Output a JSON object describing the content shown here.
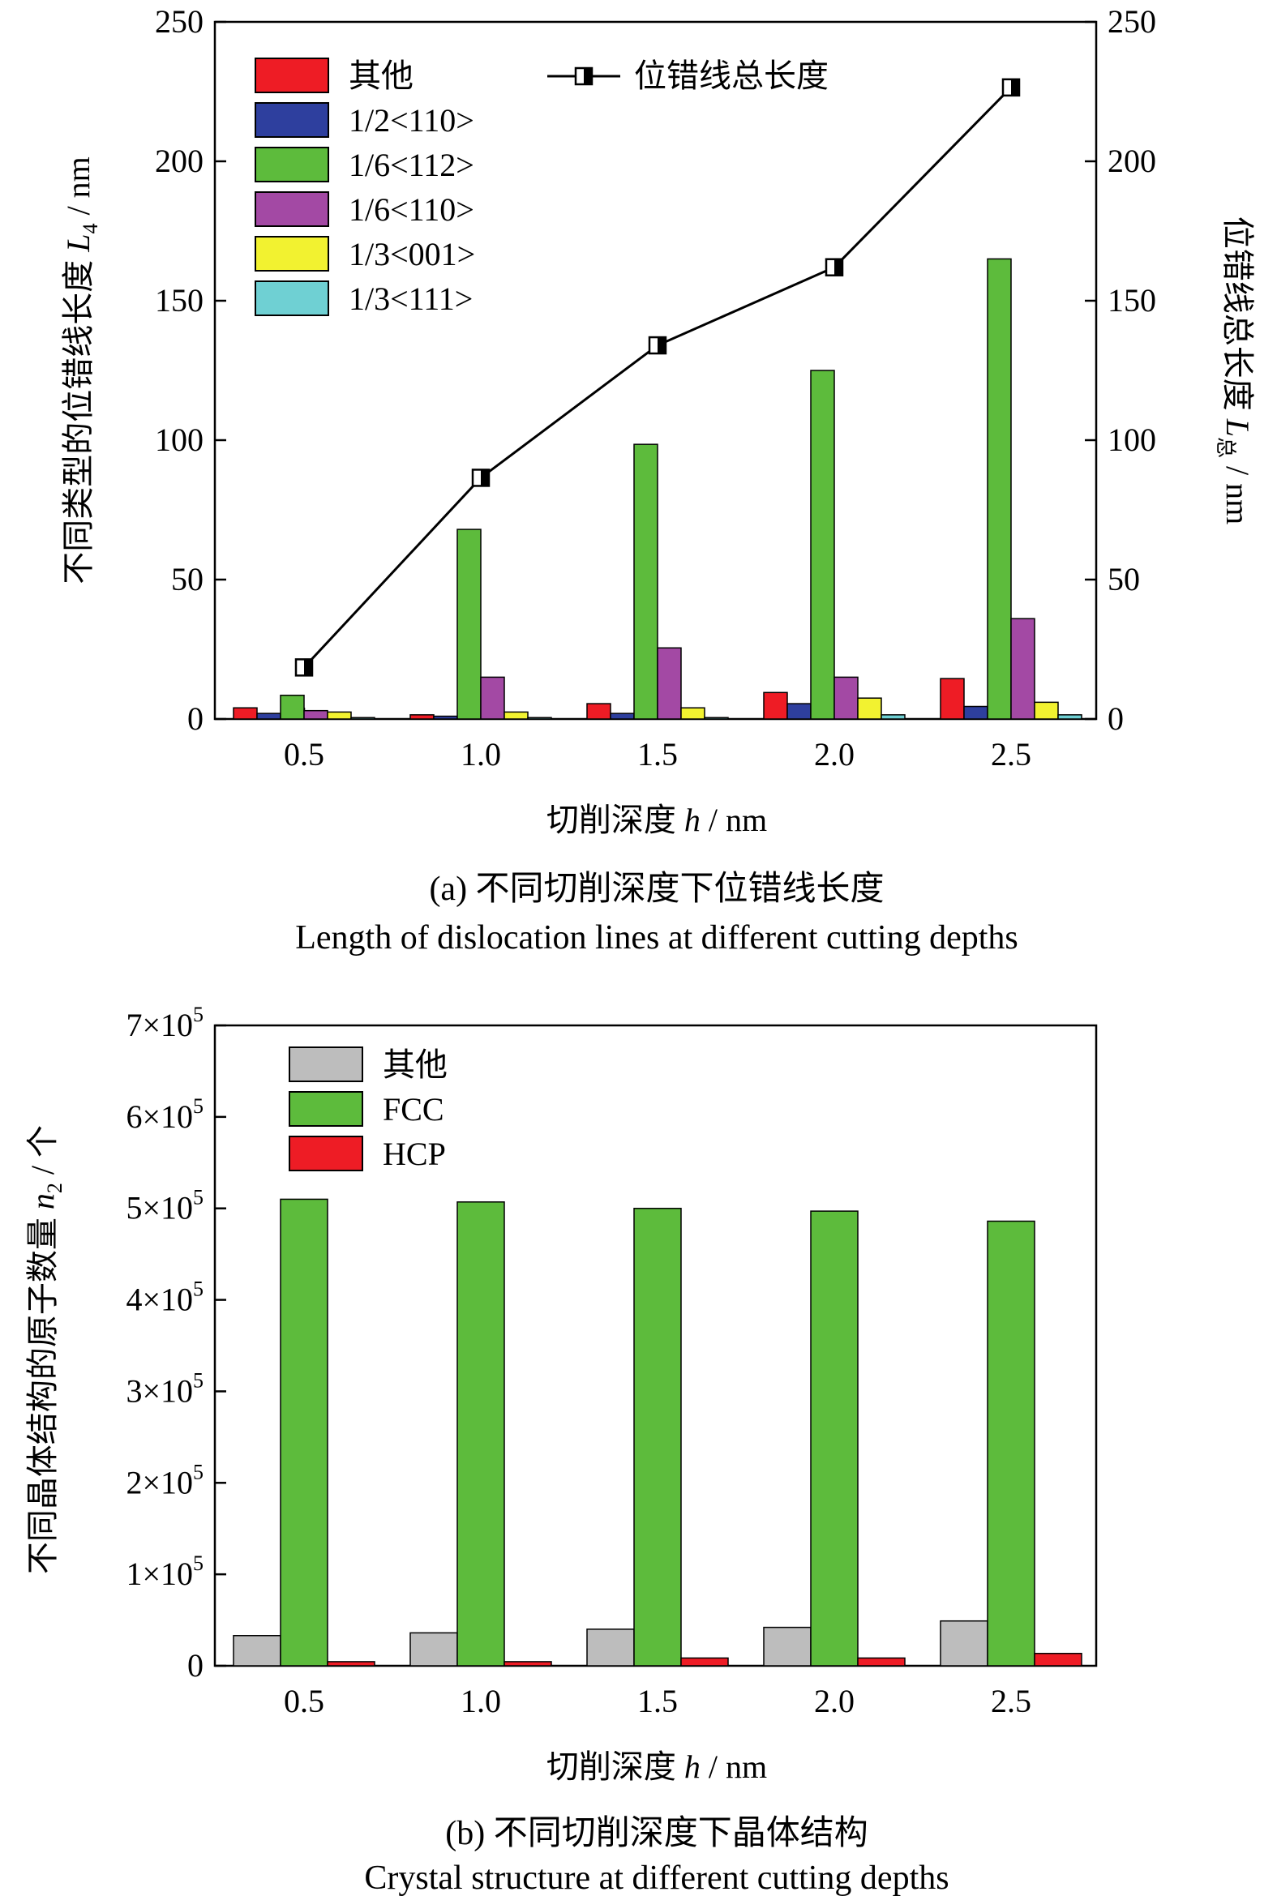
{
  "chart_data": [
    {
      "type": "bar",
      "caption_cn": "(a) 不同切削深度下位错线长度",
      "caption_en": "Length of dislocation lines at different cutting depths",
      "xlabel_pre": "切削深度 ",
      "xlabel_var": "h",
      "xlabel_post": " / nm",
      "ylabel_pre": "不同类型的位错线长度 ",
      "ylabel_var": "L",
      "ylabel_sub": "4",
      "ylabel_post": " / nm",
      "y2label_pre": "位错线总长度 ",
      "y2label_var": "L",
      "y2label_sub": "总",
      "y2label_post": " / nm",
      "categories": [
        "0.5",
        "1.0",
        "1.5",
        "2.0",
        "2.5"
      ],
      "ylim": [
        0,
        250
      ],
      "yticks": [
        "0",
        "50",
        "100",
        "150",
        "200",
        "250"
      ],
      "y2lim": [
        0,
        250
      ],
      "series": [
        {
          "name": "其他",
          "color": "#ee1c25",
          "values": [
            4,
            1.5,
            5.5,
            9.5,
            14.5
          ]
        },
        {
          "name": "1/2<110>",
          "color": "#2e3f9e",
          "values": [
            2,
            1,
            2,
            5.5,
            4.5
          ]
        },
        {
          "name": "1/6<112>",
          "color": "#5dbb3c",
          "values": [
            8.5,
            68,
            98.5,
            125,
            165
          ]
        },
        {
          "name": "1/6<110>",
          "color": "#a349a4",
          "values": [
            3,
            15,
            25.5,
            15,
            36
          ]
        },
        {
          "name": "1/3<001>",
          "color": "#f2f230",
          "values": [
            2.5,
            2.5,
            4,
            7.5,
            6
          ]
        },
        {
          "name": "1/3<111>",
          "color": "#6fd0d3",
          "values": [
            0.5,
            0.5,
            0.5,
            1.5,
            1.5
          ]
        }
      ],
      "line_series": {
        "name": "位错线总长度",
        "axis": "right",
        "values": [
          18.5,
          86.5,
          134,
          162,
          226.5
        ]
      }
    },
    {
      "type": "bar",
      "caption_cn": "(b) 不同切削深度下晶体结构",
      "caption_en": "Crystal structure at different cutting depths",
      "xlabel_pre": "切削深度 ",
      "xlabel_var": "h",
      "xlabel_post": " / nm",
      "ylabel_pre": "不同晶体结构的原子数量 ",
      "ylabel_var": "n",
      "ylabel_sub": "2",
      "ylabel_post": " / 个",
      "categories": [
        "0.5",
        "1.0",
        "1.5",
        "2.0",
        "2.5"
      ],
      "ylim": [
        0,
        700000
      ],
      "yticks": [
        {
          "value": 0,
          "mant": "0",
          "exp": ""
        },
        {
          "value": 100000,
          "mant": "1×10",
          "exp": "5"
        },
        {
          "value": 200000,
          "mant": "2×10",
          "exp": "5"
        },
        {
          "value": 300000,
          "mant": "3×10",
          "exp": "5"
        },
        {
          "value": 400000,
          "mant": "4×10",
          "exp": "5"
        },
        {
          "value": 500000,
          "mant": "5×10",
          "exp": "5"
        },
        {
          "value": 600000,
          "mant": "6×10",
          "exp": "5"
        },
        {
          "value": 700000,
          "mant": "7×10",
          "exp": "5"
        }
      ],
      "series": [
        {
          "name": "其他",
          "color": "#bdbdbd",
          "values": [
            33000,
            36000,
            40000,
            42000,
            49000
          ]
        },
        {
          "name": "FCC",
          "color": "#5dbb3c",
          "values": [
            510000,
            507000,
            500000,
            497000,
            486000
          ]
        },
        {
          "name": "HCP",
          "color": "#ee1c25",
          "values": [
            4500,
            4500,
            8500,
            8500,
            13500
          ]
        }
      ]
    }
  ]
}
